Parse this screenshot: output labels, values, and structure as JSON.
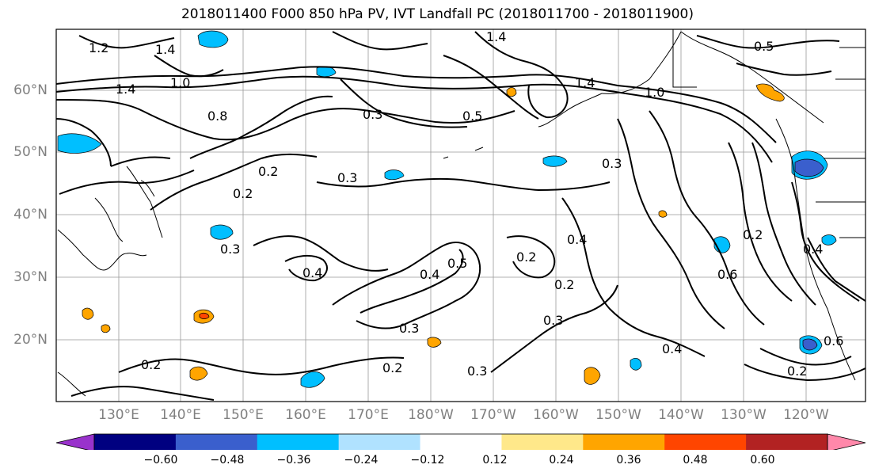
{
  "title": "2018011400 F000 850 hPa PV, IVT Landfall PC (2018011700 - 2018011900)",
  "map": {
    "lat_labels": [
      "60°N",
      "50°N",
      "40°N",
      "30°N",
      "20°N"
    ],
    "lon_labels": [
      "130°E",
      "140°E",
      "150°E",
      "160°E",
      "170°E",
      "180°W",
      "170°W",
      "160°W",
      "150°W",
      "140°W",
      "130°W",
      "120°W"
    ],
    "contour_labels": [
      "1.2",
      "1.4",
      "1.0",
      "1.4",
      "0.8",
      "0.3",
      "0.5",
      "0.2",
      "0.3",
      "0.2",
      "0.3",
      "0.4",
      "0.5",
      "0.4",
      "0.3",
      "0.2",
      "0.4",
      "0.2",
      "0.3",
      "0.2",
      "0.3",
      "0.2",
      "0.4",
      "0.6",
      "0.2",
      "0.4",
      "0.6",
      "0.2",
      "0.5",
      "1.0",
      "1.4",
      "1.4",
      "0.3"
    ]
  },
  "colorbar": {
    "ticks": [
      "−0.60",
      "−0.48",
      "−0.36",
      "−0.24",
      "−0.12",
      "0.12",
      "0.24",
      "0.36",
      "0.48",
      "0.60"
    ],
    "colors": [
      "#9932cc",
      "#000080",
      "#3a5fcd",
      "#00bfff",
      "#b0e2ff",
      "#ffffff",
      "#ffe88a",
      "#ffa500",
      "#ff4500",
      "#b22222",
      "#ff88aa"
    ]
  }
}
